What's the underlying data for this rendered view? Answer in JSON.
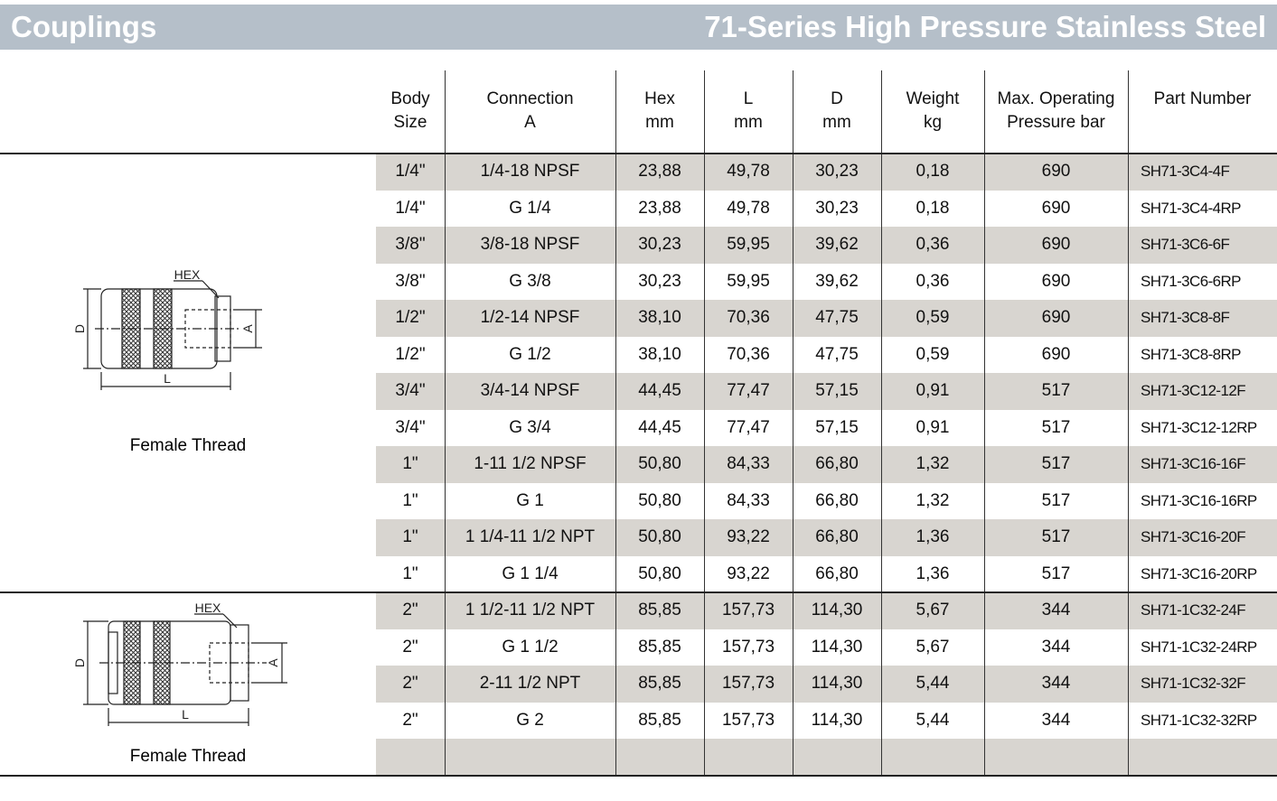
{
  "header": {
    "left": "Couplings",
    "right": "71-Series High Pressure Stainless Steel"
  },
  "table": {
    "columns": [
      [
        "Body",
        "Size"
      ],
      [
        "Connection",
        "A"
      ],
      [
        "Hex",
        "mm"
      ],
      [
        "L",
        "mm"
      ],
      [
        "D",
        "mm"
      ],
      [
        "Weight",
        "kg"
      ],
      [
        "Max. Operating",
        "Pressure bar"
      ],
      [
        "Part Number"
      ]
    ],
    "groups": [
      {
        "caption": "Female Thread",
        "labels": {
          "hex": "HEX",
          "d": "D",
          "a": "A",
          "l": "L"
        },
        "rows": [
          [
            "1/4\"",
            "1/4-18 NPSF",
            "23,88",
            "49,78",
            "30,23",
            "0,18",
            "690",
            "SH71-3C4-4F"
          ],
          [
            "1/4\"",
            "G 1/4",
            "23,88",
            "49,78",
            "30,23",
            "0,18",
            "690",
            "SH71-3C4-4RP"
          ],
          [
            "3/8\"",
            "3/8-18 NPSF",
            "30,23",
            "59,95",
            "39,62",
            "0,36",
            "690",
            "SH71-3C6-6F"
          ],
          [
            "3/8\"",
            "G 3/8",
            "30,23",
            "59,95",
            "39,62",
            "0,36",
            "690",
            "SH71-3C6-6RP"
          ],
          [
            "1/2\"",
            "1/2-14 NPSF",
            "38,10",
            "70,36",
            "47,75",
            "0,59",
            "690",
            "SH71-3C8-8F"
          ],
          [
            "1/2\"",
            "G 1/2",
            "38,10",
            "70,36",
            "47,75",
            "0,59",
            "690",
            "SH71-3C8-8RP"
          ],
          [
            "3/4\"",
            "3/4-14 NPSF",
            "44,45",
            "77,47",
            "57,15",
            "0,91",
            "517",
            "SH71-3C12-12F"
          ],
          [
            "3/4\"",
            "G 3/4",
            "44,45",
            "77,47",
            "57,15",
            "0,91",
            "517",
            "SH71-3C12-12RP"
          ],
          [
            "1\"",
            "1-11 1/2 NPSF",
            "50,80",
            "84,33",
            "66,80",
            "1,32",
            "517",
            "SH71-3C16-16F"
          ],
          [
            "1\"",
            "G 1",
            "50,80",
            "84,33",
            "66,80",
            "1,32",
            "517",
            "SH71-3C16-16RP"
          ],
          [
            "1\"",
            "1 1/4-11 1/2 NPT",
            "50,80",
            "93,22",
            "66,80",
            "1,36",
            "517",
            "SH71-3C16-20F"
          ],
          [
            "1\"",
            "G 1 1/4",
            "50,80",
            "93,22",
            "66,80",
            "1,36",
            "517",
            "SH71-3C16-20RP"
          ]
        ]
      },
      {
        "caption": "Female Thread",
        "labels": {
          "hex": "HEX",
          "d": "D",
          "a": "A",
          "l": "L"
        },
        "rows": [
          [
            "2\"",
            "1 1/2-11 1/2 NPT",
            "85,85",
            "157,73",
            "114,30",
            "5,67",
            "344",
            "SH71-1C32-24F"
          ],
          [
            "2\"",
            "G 1 1/2",
            "85,85",
            "157,73",
            "114,30",
            "5,67",
            "344",
            "SH71-1C32-24RP"
          ],
          [
            "2\"",
            "2-11 1/2 NPT",
            "85,85",
            "157,73",
            "114,30",
            "5,44",
            "344",
            "SH71-1C32-32F"
          ],
          [
            "2\"",
            "G 2",
            "85,85",
            "157,73",
            "114,30",
            "5,44",
            "344",
            "SH71-1C32-32RP"
          ]
        ]
      }
    ]
  }
}
